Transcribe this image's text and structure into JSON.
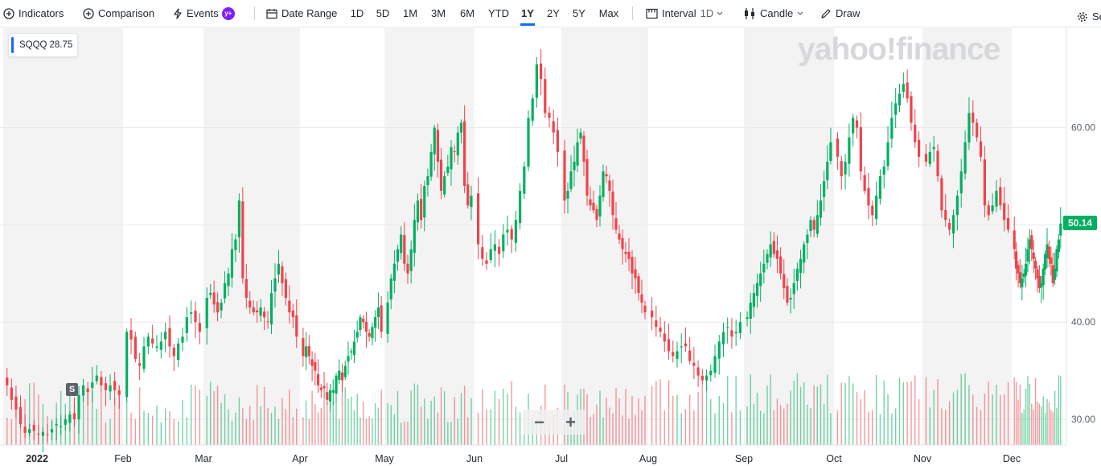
{
  "toolbar": {
    "indicators_label": "Indicators",
    "comparison_label": "Comparison",
    "events_label": "Events",
    "events_badge": "y+",
    "date_range_label": "Date Range",
    "ranges": [
      "1D",
      "5D",
      "1M",
      "3M",
      "6M",
      "YTD",
      "1Y",
      "2Y",
      "5Y",
      "Max"
    ],
    "active_range": "1Y",
    "interval_label": "Interval",
    "interval_value": "1D",
    "candle_label": "Candle",
    "draw_label": "Draw",
    "settings_label": "Se"
  },
  "legend": {
    "symbol": "SQQQ",
    "value": "28.75"
  },
  "watermark": "yahoo!finance",
  "last_price": "50.14",
  "split_marker": "S",
  "zoom": {
    "minus": "−",
    "plus": "+"
  },
  "colors": {
    "up": "#00b061",
    "down": "#f0434b",
    "accent": "#0f69ff",
    "band": "#f3f3f3"
  },
  "chart_data": {
    "type": "candlestick",
    "title": "",
    "symbol": "SQQQ",
    "interval": "1D",
    "range": "1Y",
    "x_tick_labels": [
      "2022",
      "Feb",
      "Mar",
      "Apr",
      "May",
      "Jun",
      "Jul",
      "Aug",
      "Sep",
      "Oct",
      "Nov",
      "Dec"
    ],
    "y_tick_labels": [
      "30.00",
      "40.00",
      "50.00",
      "60.00"
    ],
    "ylim": [
      27.5,
      69.5
    ],
    "last_price": 50.14,
    "months": [
      {
        "label": "2022",
        "close": [
          33.5,
          32.0,
          31.0,
          29.5,
          28.6,
          29.0,
          28.8,
          28.5,
          28.7,
          28.4,
          29.0,
          29.5,
          29.3,
          30.0,
          30.5,
          30.0,
          32.5,
          33.5,
          32.8,
          33.8,
          34.5,
          33.5,
          33.0,
          33.5,
          33.0,
          32.5
        ]
      },
      {
        "label": "Feb",
        "close": [
          39.0,
          38.2,
          36.2,
          35.5,
          37.5,
          38.5,
          37.8,
          37.5,
          38.0,
          39.0,
          37.5,
          36.5,
          37.8,
          38.5,
          40.5,
          41.0,
          40.0,
          39.0
        ]
      },
      {
        "label": "Mar",
        "close": [
          42.5,
          43.0,
          41.8,
          41.0,
          42.0,
          44.0,
          45.0,
          47.5,
          48.5,
          52.5,
          44.5,
          42.5,
          41.5,
          41.0,
          41.0,
          41.5,
          40.5,
          40.0,
          43.0,
          44.5,
          46.0,
          44.0,
          42.5,
          41.0,
          40.5,
          38.5
        ]
      },
      {
        "label": "Apr",
        "close": [
          36.5,
          37.5,
          36.5,
          35.5,
          35.0,
          33.5,
          33.0,
          33.2,
          32.0,
          33.0,
          33.0,
          34.5,
          35.0,
          34.0,
          35.5,
          36.5,
          37.0,
          38.0,
          39.0,
          40.5,
          40.0,
          39.0,
          38.5,
          39.5,
          40.5,
          41.5,
          39.0
        ]
      },
      {
        "label": "May",
        "close": [
          42.0,
          44.5,
          46.0,
          47.5,
          49.0,
          46.0,
          45.0,
          47.5,
          50.5,
          52.5,
          50.5,
          54.0,
          55.0,
          57.5,
          60.0,
          56.5,
          53.5,
          55.0,
          56.0,
          58.0,
          57.5,
          59.5,
          60.5,
          54.0,
          52.0,
          53.0
        ]
      },
      {
        "label": "Jun",
        "close": [
          48.0,
          46.5,
          46.0,
          47.5,
          48.0,
          47.0,
          49.0,
          49.5,
          48.5,
          50.5,
          53.5,
          56.0,
          61.0,
          63.0,
          66.5,
          65.0,
          61.5,
          61.0,
          59.5,
          57.5
        ]
      },
      {
        "label": "Jul",
        "close": [
          52.5,
          53.5,
          55.5,
          56.5,
          58.5,
          59.5,
          56.5,
          53.0,
          52.0,
          51.5,
          50.5,
          53.0,
          55.5,
          55.0,
          53.5,
          51.0,
          49.5,
          48.5,
          47.5,
          47.0,
          46.5,
          45.0,
          44.5,
          43.0,
          42.0,
          41.0
        ]
      },
      {
        "label": "Aug",
        "close": [
          40.5,
          39.5,
          39.0,
          38.0,
          37.0,
          36.5,
          37.0,
          37.5,
          37.5,
          36.0,
          35.5,
          34.5,
          34.0,
          34.5,
          35.0,
          36.5,
          38.0,
          39.0,
          39.5,
          38.5,
          39.0,
          40.0
        ]
      },
      {
        "label": "Sep",
        "close": [
          40.5,
          42.0,
          43.0,
          44.0,
          45.0,
          46.0,
          47.0,
          48.0,
          47.0,
          46.5,
          45.0,
          43.5,
          42.0,
          42.5,
          44.0,
          45.5,
          46.5,
          48.0,
          49.0,
          50.5,
          49.5,
          51.0,
          52.5,
          54.5,
          56.5,
          58.5
        ]
      },
      {
        "label": "Oct",
        "close": [
          57.0,
          55.0,
          56.5,
          59.0,
          61.0,
          60.0,
          55.5,
          53.5,
          52.0,
          51.0,
          53.0,
          55.0,
          56.0,
          58.5,
          61.0,
          62.5,
          63.5,
          64.5,
          63.0,
          60.5,
          58.5,
          57.0
        ]
      },
      {
        "label": "Nov",
        "close": [
          56.5,
          57.5,
          58.0,
          55.0,
          51.5,
          50.5,
          49.5,
          51.0,
          53.0,
          55.5,
          58.5,
          61.5,
          60.5,
          59.0,
          57.0,
          52.0,
          51.0,
          52.0,
          53.5,
          52.0,
          50.5,
          49.5
        ]
      },
      {
        "label": "Dec",
        "close": [
          47.5,
          45.5,
          45.0,
          44.0,
          44.5,
          45.0,
          46.0,
          47.5,
          48.5,
          47.5,
          46.5,
          45.5,
          44.5,
          43.5,
          44.0,
          45.5,
          47.0,
          48.0,
          46.5,
          46.0,
          44.0,
          45.5,
          47.5,
          48.5,
          50.14
        ]
      }
    ]
  }
}
